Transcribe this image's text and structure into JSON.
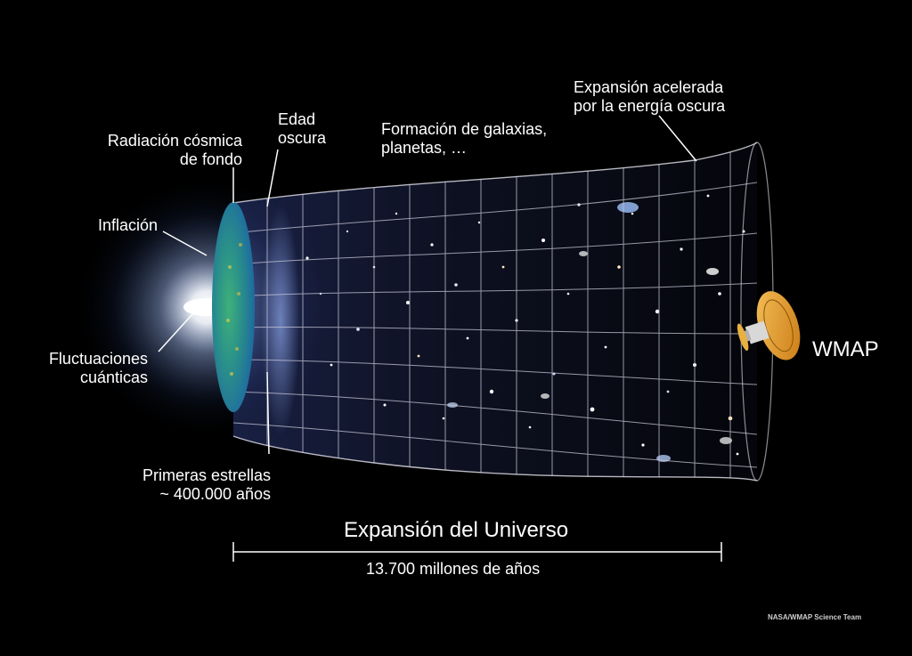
{
  "colors": {
    "background": "#000000",
    "text": "#ffffff",
    "grid": "#c8c8d8",
    "cmb": "#2a9a6a",
    "satellite": "#e09a28",
    "glow": "#ffffff"
  },
  "labels": {
    "radiacion_line1": "Radiación cósmica",
    "radiacion_line2": "de fondo",
    "edad_line1": "Edad",
    "edad_line2": "oscura",
    "formacion_line1": "Formación de galaxias,",
    "formacion_line2": "planetas, …",
    "expansion_acel_line1": "Expansión acelerada",
    "expansion_acel_line2": "por la energía oscura",
    "inflacion": "Inflación",
    "fluctuaciones_line1": "Fluctuaciones",
    "fluctuaciones_line2": "cuánticas",
    "primeras_line1": "Primeras estrellas",
    "primeras_line2": "~ 400.000 años",
    "wmap": "WMAP",
    "expansion_universo": "Expansión del Universo",
    "duracion": "13.700 millones de años",
    "credit": "NASA/WMAP Science Team"
  },
  "icons": {
    "satellite": "wmap-satellite-icon",
    "big_bang": "big-bang-glow-icon"
  }
}
